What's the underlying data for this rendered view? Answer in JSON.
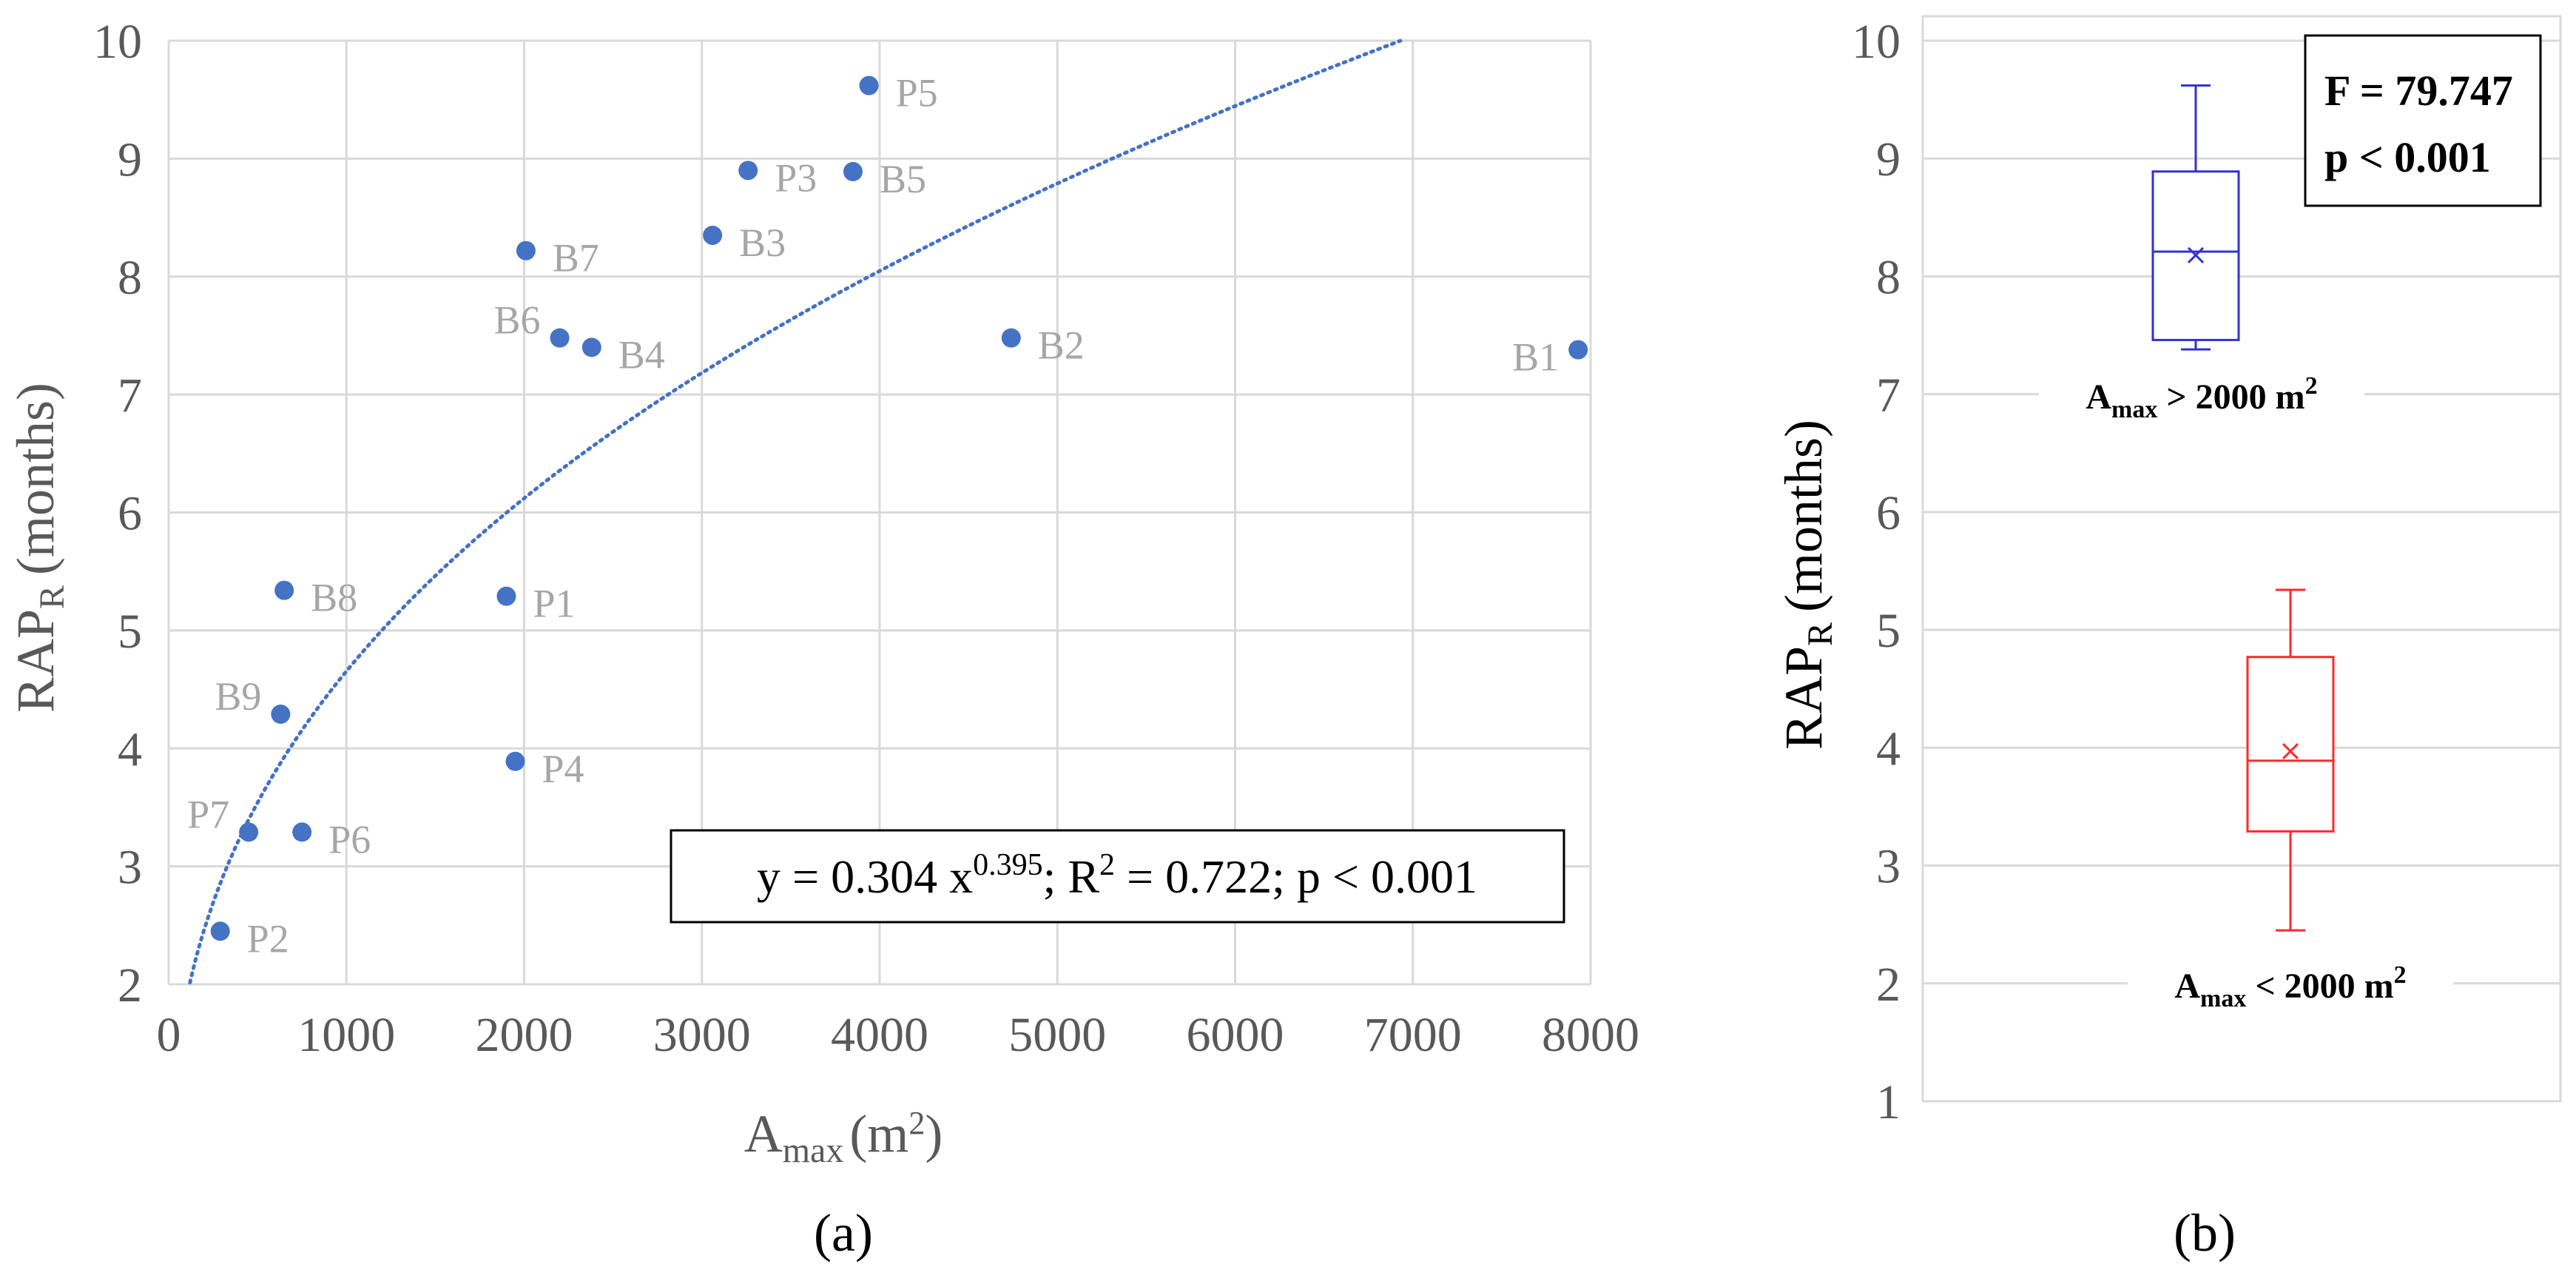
{
  "chart_data": [
    {
      "type": "scatter",
      "panel_label": "(a)",
      "xlabel": "A",
      "xlabel_sub": "max",
      "xlabel_unit": "(m",
      "xlabel_unit_sup": "2",
      "xlabel_unit_close": ")",
      "ylabel": "RAP",
      "ylabel_sub": "R",
      "ylabel_unit": "(months)",
      "xlim": [
        0,
        8000
      ],
      "ylim": [
        2,
        10
      ],
      "x_ticks": [
        "0",
        "1000",
        "2000",
        "3000",
        "4000",
        "5000",
        "6000",
        "7000",
        "8000"
      ],
      "y_ticks": [
        "2",
        "3",
        "4",
        "5",
        "6",
        "7",
        "8",
        "9",
        "10"
      ],
      "grid": true,
      "marker_color": "#4472c4",
      "points": [
        {
          "label": "P5",
          "x": 3940,
          "y": 9.62
        },
        {
          "label": "P3",
          "x": 3260,
          "y": 8.9
        },
        {
          "label": "B5",
          "x": 3850,
          "y": 8.89
        },
        {
          "label": "B3",
          "x": 3060,
          "y": 8.35
        },
        {
          "label": "B7",
          "x": 2010,
          "y": 8.22
        },
        {
          "label": "B6",
          "x": 2200,
          "y": 7.48
        },
        {
          "label": "B4",
          "x": 2380,
          "y": 7.4
        },
        {
          "label": "B2",
          "x": 4740,
          "y": 7.48
        },
        {
          "label": "B1",
          "x": 7930,
          "y": 7.38
        },
        {
          "label": "B8",
          "x": 650,
          "y": 5.34
        },
        {
          "label": "P1",
          "x": 1900,
          "y": 5.29
        },
        {
          "label": "B9",
          "x": 630,
          "y": 4.29
        },
        {
          "label": "P4",
          "x": 1950,
          "y": 3.89
        },
        {
          "label": "P7",
          "x": 450,
          "y": 3.29
        },
        {
          "label": "P6",
          "x": 750,
          "y": 3.29
        },
        {
          "label": "P2",
          "x": 290,
          "y": 2.45
        }
      ],
      "trendline": {
        "a": 0.304,
        "b": 0.395,
        "color": "#4472c4",
        "style": "dotted"
      },
      "equation": {
        "prefix": "y = 0.304 x",
        "exponent": "0.395",
        "r2_prefix": "; R",
        "r2_sup": "2",
        "suffix": " = 0.722; p < 0.001"
      }
    },
    {
      "type": "box",
      "panel_label": "(b)",
      "ylabel": "RAP",
      "ylabel_sub": "R",
      "ylabel_unit": "(months)",
      "ylim": [
        1,
        10
      ],
      "y_ticks": [
        "1",
        "2",
        "3",
        "4",
        "5",
        "6",
        "7",
        "8",
        "9",
        "10"
      ],
      "grid": true,
      "annotation": {
        "line1": "F = 79.747",
        "line2": "p < 0.001"
      },
      "groups": [
        {
          "label_main": "A",
          "label_sub": "max",
          "label_rest": " > 2000 m",
          "label_sup": "2",
          "color": "#3333cc",
          "min": 7.38,
          "q1": 7.46,
          "median": 8.21,
          "q3": 8.89,
          "max": 9.62,
          "mean": 8.18
        },
        {
          "label_main": "A",
          "label_sub": "max",
          "label_rest": " < 2000 m",
          "label_sup": "2",
          "color": "#ff2a2a",
          "min": 2.45,
          "q1": 3.29,
          "median": 3.89,
          "q3": 4.77,
          "max": 5.34,
          "mean": 3.97
        }
      ]
    }
  ]
}
